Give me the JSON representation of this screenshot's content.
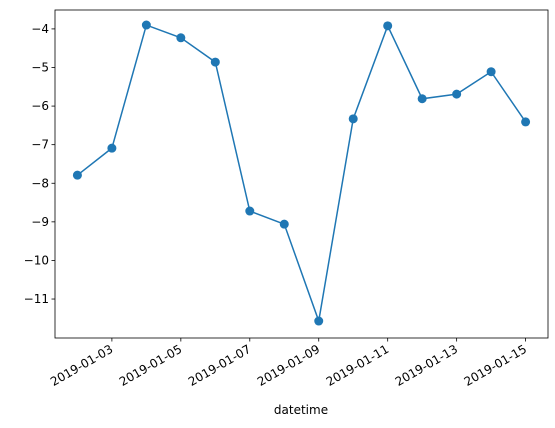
{
  "chart_data": {
    "type": "line",
    "xlabel": "datetime",
    "x": [
      "2019-01-02",
      "2019-01-03",
      "2019-01-04",
      "2019-01-05",
      "2019-01-06",
      "2019-01-07",
      "2019-01-08",
      "2019-01-09",
      "2019-01-10",
      "2019-01-11",
      "2019-01-12",
      "2019-01-13",
      "2019-01-14",
      "2019-01-15"
    ],
    "series": [
      {
        "color": "#1f77b4",
        "values": [
          -7.79,
          -7.09,
          -3.9,
          -4.23,
          -4.86,
          -8.72,
          -9.06,
          -11.57,
          -6.33,
          -3.92,
          -5.81,
          -5.69,
          -5.11,
          -6.41
        ]
      }
    ],
    "xticks": [
      "2019-01-03",
      "2019-01-05",
      "2019-01-07",
      "2019-01-09",
      "2019-01-11",
      "2019-01-13",
      "2019-01-15"
    ],
    "ylim": [
      -12.01,
      -3.51
    ],
    "yticks": [
      {
        "value": -11,
        "label": "−11"
      },
      {
        "value": -10,
        "label": "−10"
      },
      {
        "value": -9,
        "label": "−9"
      },
      {
        "value": -8,
        "label": "−8"
      },
      {
        "value": -7,
        "label": "−7"
      },
      {
        "value": -6,
        "label": "−6"
      },
      {
        "value": -5,
        "label": "−5"
      },
      {
        "value": -4,
        "label": "−4"
      }
    ],
    "grid": false
  }
}
